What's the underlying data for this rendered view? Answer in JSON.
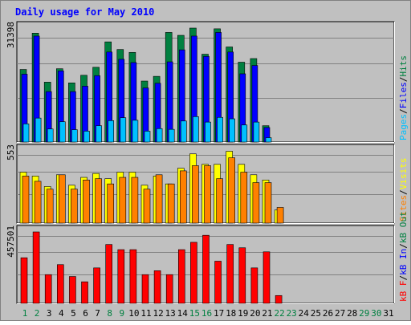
{
  "title": "Daily usage for May 2010",
  "colors": {
    "frame_bg": "#c0c0c0",
    "frame_border": "#808080",
    "title_text": "#0000ff",
    "hits": "#008040",
    "files": "#0000ff",
    "pages": "#00c0ff",
    "visits": "#ffff00",
    "sites": "#ff8000",
    "kb_in": "#0000ff",
    "kb_out": "#008040",
    "kb_f": "#ff0000",
    "label_black": "#000000",
    "weekend_day": "#008040"
  },
  "chart_data": [
    {
      "type": "bar",
      "panel": "hits-files-pages",
      "max_label": "31398",
      "ylim": [
        0,
        31398
      ],
      "legend": [
        {
          "text": "Pages",
          "color": "#00c0ff"
        },
        {
          "text": "/",
          "color": "#000000"
        },
        {
          "text": "Files",
          "color": "#0000ff"
        },
        {
          "text": "/",
          "color": "#000000"
        },
        {
          "text": "Hits",
          "color": "#008040"
        }
      ],
      "categories": [
        1,
        2,
        3,
        4,
        5,
        6,
        7,
        8,
        9,
        10,
        11,
        12,
        13,
        14,
        15,
        16,
        17,
        18,
        19,
        20,
        21,
        22,
        23,
        24,
        25,
        26,
        27,
        28,
        29,
        30,
        31
      ],
      "series": [
        {
          "name": "Hits",
          "color": "#008040",
          "values": [
            20000,
            30000,
            16500,
            20200,
            16300,
            18400,
            20600,
            27600,
            25500,
            24700,
            16800,
            18100,
            30200,
            29400,
            31398,
            24200,
            31200,
            26200,
            22000,
            23000,
            4500,
            0,
            0,
            0,
            0,
            0,
            0,
            0,
            0,
            0,
            0
          ]
        },
        {
          "name": "Files",
          "color": "#0000ff",
          "values": [
            18700,
            29200,
            13900,
            19600,
            13900,
            15400,
            18300,
            24800,
            22800,
            21900,
            14900,
            16200,
            22100,
            25400,
            29200,
            23600,
            30200,
            24800,
            18800,
            21100,
            4000,
            0,
            0,
            0,
            0,
            0,
            0,
            0,
            0,
            0,
            0
          ]
        },
        {
          "name": "Pages",
          "color": "#00c0ff",
          "values": [
            5000,
            6600,
            3600,
            5600,
            3400,
            3000,
            4500,
            5900,
            6700,
            6000,
            3000,
            3700,
            3500,
            5800,
            7000,
            5500,
            6800,
            6400,
            4700,
            5500,
            1200,
            0,
            0,
            0,
            0,
            0,
            0,
            0,
            0,
            0,
            0
          ]
        }
      ]
    },
    {
      "type": "bar",
      "panel": "visits-sites",
      "max_label": "553",
      "ylim": [
        0,
        553
      ],
      "legend": [
        {
          "text": "Sites",
          "color": "#ff8000"
        },
        {
          "text": "/",
          "color": "#000000"
        },
        {
          "text": "Visits",
          "color": "#ffff00"
        }
      ],
      "categories": [
        1,
        2,
        3,
        4,
        5,
        6,
        7,
        8,
        9,
        10,
        11,
        12,
        13,
        14,
        15,
        16,
        17,
        18,
        19,
        20,
        21,
        22,
        23,
        24,
        25,
        26,
        27,
        28,
        29,
        30,
        31
      ],
      "series": [
        {
          "name": "Visits",
          "color": "#ffff00",
          "values": [
            390,
            360,
            280,
            370,
            290,
            350,
            380,
            340,
            390,
            390,
            290,
            360,
            300,
            420,
            530,
            450,
            450,
            550,
            450,
            370,
            330,
            100,
            0,
            0,
            0,
            0,
            0,
            0,
            0,
            0,
            0
          ]
        },
        {
          "name": "Sites",
          "color": "#ff8000",
          "values": [
            360,
            320,
            260,
            370,
            260,
            330,
            340,
            300,
            350,
            350,
            260,
            370,
            300,
            400,
            440,
            440,
            340,
            500,
            390,
            310,
            310,
            120,
            0,
            0,
            0,
            0,
            0,
            0,
            0,
            0,
            0
          ]
        }
      ]
    },
    {
      "type": "bar",
      "panel": "kb",
      "max_label": "457501",
      "ylim": [
        0,
        457501
      ],
      "legend": [
        {
          "text": "kB F",
          "color": "#ff0000"
        },
        {
          "text": "/",
          "color": "#000000"
        },
        {
          "text": "kB In",
          "color": "#0000ff"
        },
        {
          "text": "/",
          "color": "#000000"
        },
        {
          "text": "kB Out",
          "color": "#008040"
        }
      ],
      "categories": [
        1,
        2,
        3,
        4,
        5,
        6,
        7,
        8,
        9,
        10,
        11,
        12,
        13,
        14,
        15,
        16,
        17,
        18,
        19,
        20,
        21,
        22,
        23,
        24,
        25,
        26,
        27,
        28,
        29,
        30,
        31
      ],
      "series": [
        {
          "name": "kB F",
          "color": "#ff0000",
          "values": [
            292000,
            457501,
            184000,
            248000,
            172000,
            138000,
            227000,
            377000,
            344000,
            344000,
            184000,
            209000,
            184000,
            344000,
            391000,
            436000,
            270000,
            377000,
            356000,
            227000,
            330000,
            50000,
            0,
            0,
            0,
            0,
            0,
            0,
            0,
            0,
            0
          ]
        }
      ]
    }
  ],
  "x_axis": {
    "days": [
      "1",
      "2",
      "3",
      "4",
      "5",
      "6",
      "7",
      "8",
      "9",
      "10",
      "11",
      "12",
      "13",
      "14",
      "15",
      "16",
      "17",
      "18",
      "19",
      "20",
      "21",
      "22",
      "23",
      "24",
      "25",
      "26",
      "27",
      "28",
      "29",
      "30",
      "31"
    ],
    "weekend_days": [
      1,
      2,
      8,
      9,
      15,
      16,
      22,
      23,
      29,
      30
    ]
  }
}
